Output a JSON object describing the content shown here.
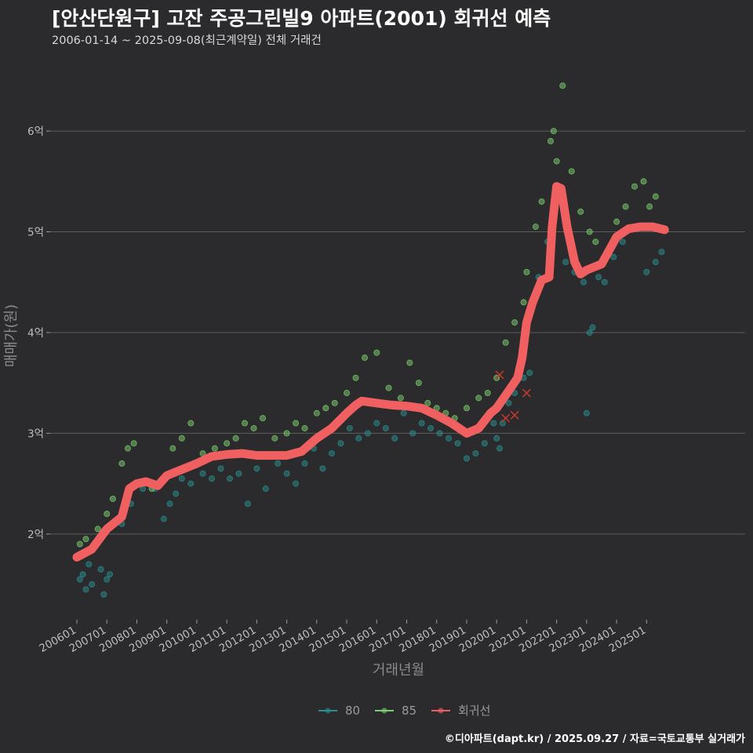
{
  "chart_data": {
    "type": "scatter",
    "title": "[안산단원구] 고잔 주공그린빌9 아파트(2001) 회귀선 예측",
    "subtitle": "2006-01-14 ~ 2025-09-08(최근계약일) 전체 거래건",
    "xlabel": "거래년월",
    "ylabel": "매매가(원)",
    "caption": "©디아파트(dapt.kr) / 2025.09.27 / 자료=국토교통부 실거래가",
    "x_ticks": [
      "200601",
      "200701",
      "200801",
      "200901",
      "201001",
      "201101",
      "201201",
      "201301",
      "201401",
      "201501",
      "201601",
      "201701",
      "201801",
      "201901",
      "202001",
      "202101",
      "202201",
      "202301",
      "202401",
      "202501"
    ],
    "y_ticks": [
      {
        "value": 2,
        "label": "2억"
      },
      {
        "value": 3,
        "label": "3억"
      },
      {
        "value": 4,
        "label": "4억"
      },
      {
        "value": 5,
        "label": "5억"
      },
      {
        "value": 6,
        "label": "6억"
      }
    ],
    "xlim": [
      2006.0,
      2025.75
    ],
    "ylim": [
      1.15,
      6.6
    ],
    "y_unit": "억",
    "grid": "horizontal",
    "legend_position": "bottom",
    "colors": {
      "s80": "#2a8f8f",
      "s85": "#7ccf6e",
      "reg": "#f06060",
      "grid": "#5e5e5e",
      "bg": "#2b2a2c"
    },
    "legend": [
      {
        "label": "80",
        "color": "#2a8f8f"
      },
      {
        "label": "85",
        "color": "#7ccf6e"
      },
      {
        "label": "회귀선",
        "color": "#f06060"
      }
    ],
    "series": [
      {
        "name": "80",
        "kind": "scatter",
        "x": [
          2006.1,
          2006.2,
          2006.3,
          2006.4,
          2006.5,
          2006.8,
          2006.9,
          2007.0,
          2007.1,
          2007.5,
          2007.8,
          2008.2,
          2008.6,
          2008.9,
          2009.1,
          2009.3,
          2009.5,
          2009.8,
          2010.2,
          2010.5,
          2010.8,
          2011.1,
          2011.4,
          2011.7,
          2012.0,
          2012.3,
          2012.7,
          2013.0,
          2013.3,
          2013.6,
          2013.9,
          2014.2,
          2014.5,
          2014.8,
          2015.1,
          2015.4,
          2015.7,
          2016.0,
          2016.3,
          2016.6,
          2016.9,
          2017.2,
          2017.5,
          2017.8,
          2018.1,
          2018.4,
          2018.7,
          2019.0,
          2019.3,
          2019.6,
          2019.9,
          2020.0,
          2020.1,
          2020.2,
          2020.4,
          2020.6,
          2020.9,
          2021.1,
          2021.4,
          2021.7,
          2021.9,
          2022.0,
          2022.3,
          2022.6,
          2022.9,
          2023.0,
          2023.1,
          2023.2,
          2023.4,
          2023.6,
          2023.9,
          2024.2,
          2024.6,
          2025.0,
          2025.3,
          2025.5
        ],
        "y": [
          1.55,
          1.6,
          1.45,
          1.7,
          1.5,
          1.65,
          1.4,
          1.55,
          1.6,
          2.1,
          2.3,
          2.45,
          2.45,
          2.15,
          2.3,
          2.4,
          2.55,
          2.5,
          2.6,
          2.55,
          2.65,
          2.55,
          2.6,
          2.3,
          2.65,
          2.45,
          2.7,
          2.6,
          2.5,
          2.7,
          2.85,
          2.65,
          2.8,
          2.9,
          3.05,
          2.95,
          3.0,
          3.1,
          3.05,
          2.95,
          3.2,
          3.0,
          3.1,
          3.05,
          3.0,
          2.95,
          2.9,
          2.75,
          2.8,
          2.9,
          3.1,
          2.95,
          2.85,
          3.1,
          3.3,
          3.4,
          3.55,
          3.6,
          4.55,
          4.9,
          5.1,
          5.35,
          4.7,
          4.6,
          4.5,
          3.2,
          4.0,
          4.05,
          4.55,
          4.5,
          4.75,
          4.9,
          5.05,
          4.6,
          4.7,
          4.8
        ]
      },
      {
        "name": "85",
        "kind": "scatter",
        "x": [
          2006.1,
          2006.3,
          2006.7,
          2007.0,
          2007.2,
          2007.5,
          2007.7,
          2007.9,
          2008.2,
          2008.5,
          2008.9,
          2009.2,
          2009.5,
          2009.8,
          2010.2,
          2010.6,
          2011.0,
          2011.3,
          2011.6,
          2011.9,
          2012.2,
          2012.6,
          2013.0,
          2013.3,
          2013.6,
          2014.0,
          2014.3,
          2014.6,
          2015.0,
          2015.3,
          2015.6,
          2016.0,
          2016.4,
          2016.8,
          2017.1,
          2017.4,
          2017.7,
          2018.0,
          2018.3,
          2018.6,
          2019.0,
          2019.4,
          2019.7,
          2020.0,
          2020.3,
          2020.6,
          2020.9,
          2021.0,
          2021.3,
          2021.5,
          2021.8,
          2021.9,
          2022.0,
          2022.2,
          2022.5,
          2022.8,
          2023.1,
          2023.3,
          2023.6,
          2024.0,
          2024.3,
          2024.6,
          2024.9,
          2025.1,
          2025.3
        ],
        "y": [
          1.9,
          1.95,
          2.05,
          2.2,
          2.35,
          2.7,
          2.85,
          2.9,
          2.5,
          2.45,
          2.55,
          2.85,
          2.95,
          3.1,
          2.8,
          2.85,
          2.9,
          2.95,
          3.1,
          3.05,
          3.15,
          2.95,
          3.0,
          3.1,
          3.05,
          3.2,
          3.25,
          3.3,
          3.4,
          3.55,
          3.75,
          3.8,
          3.45,
          3.35,
          3.7,
          3.5,
          3.3,
          3.25,
          3.2,
          3.15,
          3.25,
          3.35,
          3.4,
          3.55,
          3.9,
          4.1,
          4.3,
          4.6,
          5.05,
          5.3,
          5.9,
          6.0,
          5.7,
          6.45,
          5.6,
          5.2,
          5.0,
          4.9,
          4.75,
          5.1,
          5.25,
          5.45,
          5.5,
          5.25,
          5.35
        ]
      },
      {
        "name": "회귀선",
        "kind": "line",
        "x": [
          2006.0,
          2006.5,
          2007.0,
          2007.5,
          2007.75,
          2008.0,
          2008.3,
          2008.7,
          2009.0,
          2009.5,
          2010.0,
          2010.5,
          2011.0,
          2011.5,
          2012.0,
          2012.5,
          2013.0,
          2013.5,
          2014.0,
          2014.5,
          2015.0,
          2015.3,
          2015.5,
          2016.0,
          2016.5,
          2017.0,
          2017.5,
          2018.0,
          2018.5,
          2019.0,
          2019.4,
          2019.8,
          2020.0,
          2020.4,
          2020.7,
          2020.85,
          2021.0,
          2021.2,
          2021.5,
          2021.75,
          2021.85,
          2022.0,
          2022.15,
          2022.35,
          2022.6,
          2022.8,
          2023.0,
          2023.5,
          2024.0,
          2024.4,
          2024.8,
          2025.2,
          2025.6
        ],
        "y": [
          1.77,
          1.85,
          2.05,
          2.17,
          2.45,
          2.5,
          2.52,
          2.48,
          2.58,
          2.64,
          2.7,
          2.77,
          2.79,
          2.8,
          2.78,
          2.78,
          2.78,
          2.82,
          2.95,
          3.05,
          3.2,
          3.28,
          3.32,
          3.3,
          3.28,
          3.27,
          3.25,
          3.18,
          3.1,
          3.0,
          3.05,
          3.2,
          3.25,
          3.42,
          3.55,
          3.75,
          4.1,
          4.3,
          4.52,
          4.55,
          5.05,
          5.45,
          5.43,
          5.05,
          4.7,
          4.58,
          4.62,
          4.68,
          4.95,
          5.03,
          5.05,
          5.05,
          5.02
        ]
      }
    ],
    "outliers": {
      "x": [
        2020.1,
        2020.3,
        2020.6,
        2021.0
      ],
      "y": [
        3.58,
        3.15,
        3.18,
        3.4
      ]
    }
  }
}
